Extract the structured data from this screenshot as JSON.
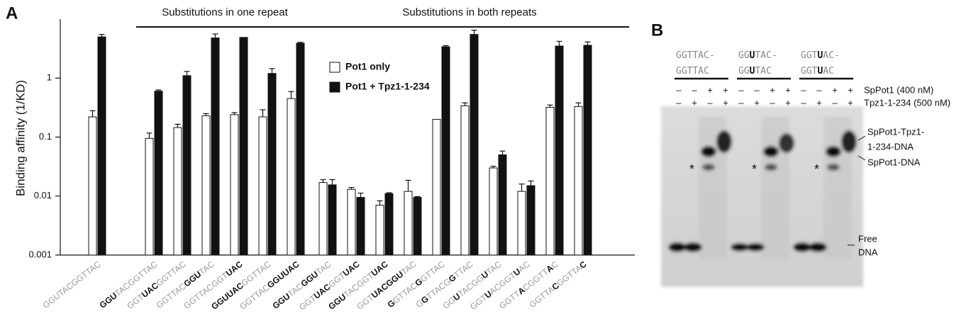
{
  "panel_labels": [
    "A",
    "B"
  ],
  "chart_data": {
    "type": "bar",
    "y_label": "Binding affinity (1/KD)",
    "log_y": true,
    "ylim": [
      0.001,
      10
    ],
    "yticks": [
      0.001,
      0.01,
      0.1,
      1
    ],
    "annotations": [
      {
        "text": "Substitutions in one repeat",
        "from": 2,
        "to": 7
      },
      {
        "text": "Substitutions in both repeats",
        "from": 8,
        "to": 18
      }
    ],
    "legend": "upper-center",
    "categories": [
      {
        "parts": [
          "GGUTACGGTTAC"
        ],
        "bold": [
          false
        ]
      },
      null,
      {
        "parts": [
          "GGU",
          "TACGGTTAC"
        ],
        "bold": [
          true,
          false
        ]
      },
      {
        "parts": [
          "GGT",
          "UAC",
          "GGTTAC"
        ],
        "bold": [
          false,
          true,
          false
        ]
      },
      {
        "parts": [
          "GGTTAC",
          "GGU",
          "TAC"
        ],
        "bold": [
          false,
          true,
          false
        ]
      },
      {
        "parts": [
          "GGTTACGGT",
          "UAC"
        ],
        "bold": [
          false,
          true
        ]
      },
      {
        "parts": [
          "GGUUAC",
          "GGTTAC"
        ],
        "bold": [
          true,
          false
        ]
      },
      {
        "parts": [
          "GGTTAC",
          "GGUUAC"
        ],
        "bold": [
          false,
          true
        ]
      },
      {
        "parts": [
          "GGU",
          "TAC",
          "GGU",
          "TAC"
        ],
        "bold": [
          true,
          false,
          true,
          false
        ]
      },
      {
        "parts": [
          "GGT",
          "UAC",
          "GGT",
          "UAC"
        ],
        "bold": [
          false,
          true,
          false,
          true
        ]
      },
      {
        "parts": [
          "GGU",
          "TACGGT",
          "UAC"
        ],
        "bold": [
          true,
          false,
          true
        ]
      },
      {
        "parts": [
          "GGT",
          "UACGGU",
          "TAC"
        ],
        "bold": [
          false,
          true,
          false
        ]
      },
      {
        "parts": [
          "G",
          "GTTAC",
          "G",
          "GTTAC"
        ],
        "bold": [
          true,
          false,
          true,
          false
        ]
      },
      {
        "parts": [
          "G",
          "G",
          "TTACG",
          "G",
          "TTAC"
        ],
        "bold": [
          false,
          true,
          false,
          true,
          false
        ]
      },
      {
        "parts": [
          "GG",
          "U",
          "TACGG",
          "U",
          "TAC"
        ],
        "bold": [
          false,
          true,
          false,
          true,
          false
        ]
      },
      {
        "parts": [
          "GGT",
          "U",
          "ACGGT",
          "U",
          "AC"
        ],
        "bold": [
          false,
          true,
          false,
          true,
          false
        ]
      },
      {
        "parts": [
          "GGTT",
          "A",
          "CGGTT",
          "A",
          "C"
        ],
        "bold": [
          false,
          true,
          false,
          true,
          false
        ]
      },
      {
        "parts": [
          "GGTTA",
          "C",
          "GGTTA",
          "C"
        ],
        "bold": [
          false,
          true,
          false,
          true
        ]
      }
    ],
    "series": [
      {
        "name": "Pot1 only",
        "color": "#ffffff",
        "values": [
          0.22,
          null,
          0.095,
          0.145,
          0.23,
          0.24,
          0.22,
          0.45,
          0.017,
          0.013,
          0.007,
          0.012,
          0.2,
          0.34,
          0.03,
          0.012,
          0.32,
          0.33
        ],
        "errors": [
          0.06,
          null,
          0.022,
          0.02,
          0.02,
          0.02,
          0.07,
          0.14,
          0.002,
          0.001,
          0.0013,
          0.0065,
          0,
          0.04,
          0.002,
          0.004,
          0.03,
          0.05
        ]
      },
      {
        "name": "Pot1 + Tpz1-1-234",
        "color": "#111111",
        "values": [
          5.0,
          null,
          0.6,
          1.1,
          4.8,
          4.9,
          1.2,
          3.9,
          0.0155,
          0.0095,
          0.011,
          0.0095,
          3.4,
          5.5,
          0.05,
          0.015,
          3.5,
          3.6
        ],
        "errors": [
          0.5,
          null,
          0.03,
          0.2,
          0.8,
          0,
          0.25,
          0.15,
          0.0035,
          0.0017,
          0.0004,
          0.0003,
          0.15,
          1.0,
          0.008,
          0.003,
          0.7,
          0.5
        ]
      }
    ]
  },
  "gel": {
    "lane_groups": [
      {
        "top": {
          "parts": [
            "GGTTAC-"
          ],
          "bold": [
            false
          ]
        },
        "bottom": {
          "parts": [
            "GGTTAC"
          ],
          "bold": [
            false
          ]
        }
      },
      {
        "top": {
          "parts": [
            "GG",
            "U",
            "TAC-"
          ],
          "bold": [
            false,
            true,
            false
          ]
        },
        "bottom": {
          "parts": [
            "GG",
            "U",
            "TAC"
          ],
          "bold": [
            false,
            true,
            false
          ]
        }
      },
      {
        "top": {
          "parts": [
            "GGT",
            "U",
            "AC-"
          ],
          "bold": [
            false,
            true,
            false
          ]
        },
        "bottom": {
          "parts": [
            "GGT",
            "U",
            "AC"
          ],
          "bold": [
            false,
            true,
            false
          ]
        }
      }
    ],
    "rows": [
      {
        "label": "SpPot1 (400 nM)",
        "signs": [
          "–",
          "–",
          "+",
          "+",
          "–",
          "–",
          "+",
          "+",
          "–",
          "–",
          "+",
          "+"
        ]
      },
      {
        "label": "Tpz1-1-234 (500 nM)",
        "signs": [
          "–",
          "+",
          "–",
          "+",
          "–",
          "+",
          "–",
          "+",
          "–",
          "+",
          "–",
          "+"
        ]
      }
    ],
    "band_labels": [
      "SpPot1-Tpz1-",
      "1-234-DNA",
      "SpPot1-DNA",
      "Free",
      "DNA"
    ],
    "markers": [
      "*",
      "*",
      "*"
    ]
  }
}
